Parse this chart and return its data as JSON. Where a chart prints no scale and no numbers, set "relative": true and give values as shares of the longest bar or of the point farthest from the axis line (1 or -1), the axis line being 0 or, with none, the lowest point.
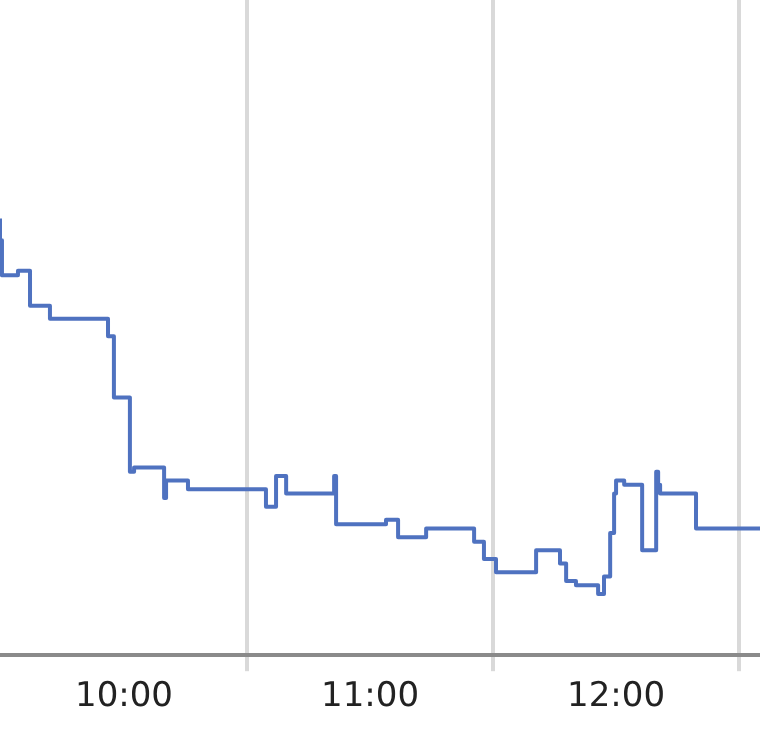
{
  "chart_data": {
    "type": "step",
    "relative": true,
    "grid": "x",
    "color": "#4f72c0",
    "x": [
      9.496,
      9.504,
      9.569,
      9.618,
      9.699,
      9.935,
      9.959,
      10.024,
      10.041,
      10.163,
      10.171,
      10.26,
      10.577,
      10.618,
      10.659,
      10.854,
      10.862,
      11.065,
      11.114,
      11.228,
      11.423,
      11.463,
      11.512,
      11.675,
      11.772,
      11.797,
      11.837,
      11.927,
      11.951,
      11.976,
      11.992,
      12.0,
      12.033,
      12.106,
      12.163,
      12.171,
      12.179,
      12.325,
      12.407,
      12.585
    ],
    "values": [
      1.0,
      0.95,
      0.87,
      0.88,
      0.8,
      0.77,
      0.73,
      0.59,
      0.42,
      0.43,
      0.36,
      0.4,
      0.38,
      0.34,
      0.41,
      0.37,
      0.41,
      0.3,
      0.31,
      0.27,
      0.29,
      0.26,
      0.22,
      0.19,
      0.24,
      0.21,
      0.17,
      0.16,
      0.14,
      0.18,
      0.28,
      0.37,
      0.4,
      0.39,
      0.24,
      0.42,
      0.39,
      0.37,
      0.29,
      0.29
    ],
    "xlim": [
      9.496,
      12.585
    ],
    "xticks": [
      {
        "value": 10,
        "label": "10:00"
      },
      {
        "value": 10.5,
        "label": null
      },
      {
        "value": 11,
        "label": "11:00"
      },
      {
        "value": 11.5,
        "label": null
      },
      {
        "value": 12,
        "label": "12:00"
      },
      {
        "value": 12.5,
        "label": null
      }
    ]
  }
}
